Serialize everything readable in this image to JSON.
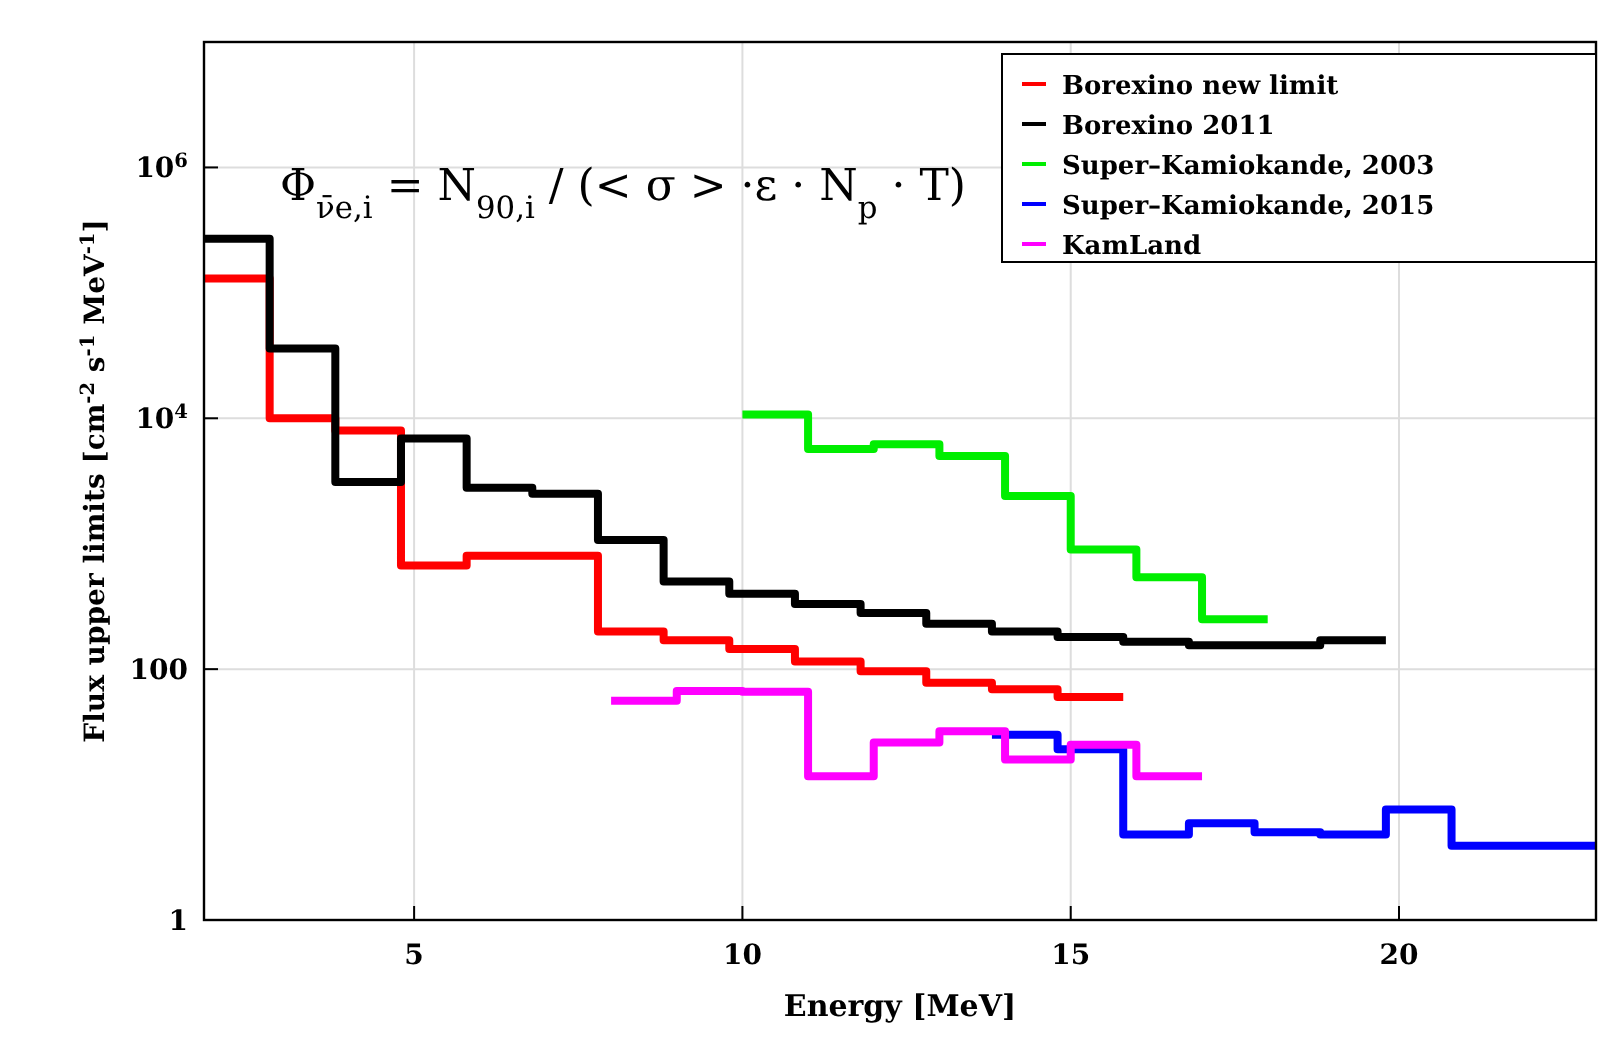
{
  "chart_data": {
    "type": "step",
    "xlabel": "Energy [MeV]",
    "ylabel": "Flux upper limits [cm$^{-2}$ s$^{-1}$ MeV$^{-1}$]",
    "annotations": [
      "Φ$_{ν̄e,i}$ = N$_{90,i}$ / (< σ > ·ε · N$_{p}$ · T)"
    ],
    "log": "y",
    "grid": true,
    "legend": "top right",
    "line_style": "solid",
    "xlim": [
      1.8,
      23
    ],
    "xticks": [
      5,
      10,
      15,
      20
    ],
    "ylim": [
      1,
      10000000
    ],
    "yticks": [
      1,
      100,
      {
        "value": 10000,
        "label": "10$^{4}$"
      },
      {
        "value": 1000000,
        "label": "10$^{6}$"
      }
    ],
    "series": [
      {
        "name": "Borexino new limit",
        "color": "#ff0000",
        "x": [
          1.8,
          2.8,
          3.8,
          4.8,
          5.8,
          6.8,
          7.8,
          8.8,
          9.8,
          10.8,
          11.8,
          12.8,
          13.8,
          14.8,
          15.8
        ],
        "values": [
          130000,
          10000,
          8000,
          670,
          800,
          800,
          200,
          170,
          145,
          115,
          96,
          78,
          69,
          60,
          60
        ]
      },
      {
        "name": "Borexino 2011",
        "color": "#000000",
        "x": [
          1.8,
          2.8,
          3.8,
          4.8,
          5.8,
          6.8,
          7.8,
          8.8,
          9.8,
          10.8,
          11.8,
          12.8,
          13.8,
          14.8,
          15.8,
          16.8,
          17.8,
          18.8,
          19.8
        ],
        "values": [
          270000,
          36000,
          3100,
          6900,
          2800,
          2500,
          1070,
          500,
          400,
          330,
          280,
          230,
          200,
          180,
          165,
          155,
          155,
          170,
          170
        ]
      },
      {
        "name": "Super–Kamiokande, 2003",
        "color": "#00ee00",
        "x": [
          10,
          11,
          12,
          13,
          14,
          15,
          16,
          17,
          18
        ],
        "values": [
          10700,
          5700,
          6200,
          5000,
          2400,
          900,
          540,
          250,
          250
        ]
      },
      {
        "name": "Super–Kamiokande, 2015",
        "color": "#0000ff",
        "x": [
          13.8,
          14.8,
          15.8,
          16.8,
          17.8,
          18.8,
          19.8,
          20.8,
          23
        ],
        "values": [
          30,
          23,
          4.8,
          5.9,
          5,
          4.8,
          7.6,
          3.9,
          3.9
        ]
      },
      {
        "name": "KamLand",
        "color": "#ff00ff",
        "x": [
          8,
          9,
          10,
          11,
          12,
          13,
          14,
          15,
          16,
          17
        ],
        "values": [
          56,
          67,
          66,
          14,
          26,
          32,
          19,
          25,
          14,
          14
        ]
      }
    ]
  }
}
